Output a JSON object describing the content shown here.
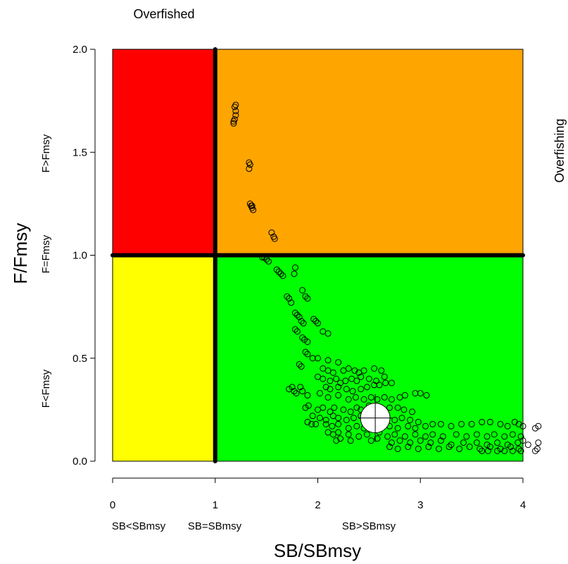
{
  "chart_data": {
    "type": "scatter",
    "title": "",
    "top_label": "Overfished",
    "right_label": "Overfishing",
    "xlabel": "SB/SBmsy",
    "ylabel": "F/Fmsy",
    "xlim": [
      0,
      4
    ],
    "ylim": [
      0,
      2
    ],
    "x_ticks": [
      "0",
      "1",
      "2",
      "3",
      "4"
    ],
    "y_ticks": [
      "0.0",
      "0.5",
      "1.0",
      "1.5",
      "2.0"
    ],
    "x_region_labels": [
      "SB<SBmsy",
      "SB=SBmsy",
      "SB>SBmsy"
    ],
    "y_region_labels": [
      "F<Fmsy",
      "F=Fmsy",
      "F>Fmsy"
    ],
    "zones": [
      {
        "name": "overfished-and-overfishing",
        "color": "#ff0000",
        "x": [
          0,
          1
        ],
        "y": [
          1,
          2
        ]
      },
      {
        "name": "overfishing-only",
        "color": "#ffa500",
        "x": [
          1,
          4
        ],
        "y": [
          1,
          2
        ]
      },
      {
        "name": "overfished-only",
        "color": "#ffff00",
        "x": [
          0,
          1
        ],
        "y": [
          0,
          1
        ]
      },
      {
        "name": "healthy",
        "color": "#00ff00",
        "x": [
          1,
          4
        ],
        "y": [
          0,
          1
        ]
      }
    ],
    "reference_lines": {
      "x": 1,
      "y": 1
    },
    "current_estimate": {
      "x": 2.56,
      "y": 0.21
    },
    "points": [
      [
        1.19,
        1.72
      ],
      [
        1.2,
        1.73
      ],
      [
        1.2,
        1.68
      ],
      [
        1.19,
        1.66
      ],
      [
        1.18,
        1.65
      ],
      [
        1.18,
        1.64
      ],
      [
        1.2,
        1.7
      ],
      [
        1.33,
        1.45
      ],
      [
        1.34,
        1.44
      ],
      [
        1.33,
        1.42
      ],
      [
        1.34,
        1.25
      ],
      [
        1.35,
        1.24
      ],
      [
        1.36,
        1.23
      ],
      [
        1.37,
        1.22
      ],
      [
        1.36,
        1.24
      ],
      [
        1.55,
        1.11
      ],
      [
        1.57,
        1.09
      ],
      [
        1.58,
        1.08
      ],
      [
        1.48,
        0.99
      ],
      [
        1.5,
        0.98
      ],
      [
        1.52,
        0.97
      ],
      [
        1.46,
        0.99
      ],
      [
        1.6,
        0.93
      ],
      [
        1.62,
        0.92
      ],
      [
        1.64,
        0.91
      ],
      [
        1.66,
        0.9
      ],
      [
        1.78,
        0.94
      ],
      [
        1.77,
        0.91
      ],
      [
        1.7,
        0.8
      ],
      [
        1.72,
        0.79
      ],
      [
        1.74,
        0.77
      ],
      [
        1.85,
        0.83
      ],
      [
        1.88,
        0.8
      ],
      [
        1.9,
        0.79
      ],
      [
        1.78,
        0.72
      ],
      [
        1.8,
        0.71
      ],
      [
        1.82,
        0.7
      ],
      [
        1.84,
        0.68
      ],
      [
        1.86,
        0.67
      ],
      [
        1.96,
        0.69
      ],
      [
        1.98,
        0.68
      ],
      [
        2.0,
        0.67
      ],
      [
        2.05,
        0.63
      ],
      [
        2.1,
        0.62
      ],
      [
        1.78,
        0.64
      ],
      [
        1.8,
        0.63
      ],
      [
        1.85,
        0.6
      ],
      [
        1.87,
        0.59
      ],
      [
        1.9,
        0.58
      ],
      [
        1.88,
        0.53
      ],
      [
        1.9,
        0.52
      ],
      [
        1.95,
        0.5
      ],
      [
        2.0,
        0.5
      ],
      [
        2.1,
        0.49
      ],
      [
        2.2,
        0.48
      ],
      [
        1.82,
        0.47
      ],
      [
        1.84,
        0.46
      ],
      [
        2.05,
        0.45
      ],
      [
        2.1,
        0.44
      ],
      [
        2.15,
        0.43
      ],
      [
        2.25,
        0.44
      ],
      [
        2.3,
        0.45
      ],
      [
        2.36,
        0.44
      ],
      [
        2.4,
        0.43
      ],
      [
        2.45,
        0.44
      ],
      [
        2.55,
        0.45
      ],
      [
        2.62,
        0.44
      ],
      [
        2.0,
        0.41
      ],
      [
        2.05,
        0.4
      ],
      [
        2.12,
        0.39
      ],
      [
        2.18,
        0.4
      ],
      [
        2.22,
        0.38
      ],
      [
        2.27,
        0.39
      ],
      [
        2.33,
        0.4
      ],
      [
        2.38,
        0.39
      ],
      [
        2.42,
        0.41
      ],
      [
        2.5,
        0.4
      ],
      [
        2.57,
        0.39
      ],
      [
        2.65,
        0.41
      ],
      [
        2.08,
        0.36
      ],
      [
        2.12,
        0.35
      ],
      [
        2.2,
        0.36
      ],
      [
        2.28,
        0.35
      ],
      [
        2.34,
        0.34
      ],
      [
        2.42,
        0.35
      ],
      [
        2.48,
        0.36
      ],
      [
        2.55,
        0.37
      ],
      [
        2.6,
        0.37
      ],
      [
        2.66,
        0.38
      ],
      [
        2.72,
        0.38
      ],
      [
        1.75,
        0.36
      ],
      [
        1.77,
        0.34
      ],
      [
        1.79,
        0.33
      ],
      [
        1.72,
        0.35
      ],
      [
        1.83,
        0.36
      ],
      [
        1.85,
        0.34
      ],
      [
        1.9,
        0.32
      ],
      [
        2.02,
        0.33
      ],
      [
        2.1,
        0.31
      ],
      [
        2.2,
        0.32
      ],
      [
        2.3,
        0.3
      ],
      [
        2.37,
        0.31
      ],
      [
        2.45,
        0.3
      ],
      [
        2.52,
        0.31
      ],
      [
        2.58,
        0.3
      ],
      [
        2.65,
        0.31
      ],
      [
        2.72,
        0.3
      ],
      [
        2.8,
        0.31
      ],
      [
        2.85,
        0.32
      ],
      [
        2.95,
        0.33
      ],
      [
        3.0,
        0.33
      ],
      [
        3.06,
        0.32
      ],
      [
        1.88,
        0.26
      ],
      [
        1.91,
        0.27
      ],
      [
        2.0,
        0.25
      ],
      [
        2.05,
        0.26
      ],
      [
        2.12,
        0.24
      ],
      [
        2.16,
        0.26
      ],
      [
        2.25,
        0.25
      ],
      [
        2.32,
        0.24
      ],
      [
        2.38,
        0.26
      ],
      [
        2.42,
        0.25
      ],
      [
        2.5,
        0.27
      ],
      [
        2.7,
        0.26
      ],
      [
        2.78,
        0.26
      ],
      [
        2.84,
        0.25
      ],
      [
        2.92,
        0.24
      ],
      [
        1.95,
        0.22
      ],
      [
        2.02,
        0.21
      ],
      [
        2.08,
        0.2
      ],
      [
        2.15,
        0.22
      ],
      [
        2.2,
        0.21
      ],
      [
        2.28,
        0.2
      ],
      [
        2.35,
        0.21
      ],
      [
        2.42,
        0.22
      ],
      [
        2.75,
        0.2
      ],
      [
        2.82,
        0.21
      ],
      [
        2.9,
        0.2
      ],
      [
        2.98,
        0.19
      ],
      [
        1.9,
        0.19
      ],
      [
        1.94,
        0.18
      ],
      [
        1.98,
        0.18
      ],
      [
        2.08,
        0.18
      ],
      [
        2.14,
        0.17
      ],
      [
        2.2,
        0.18
      ],
      [
        2.3,
        0.16
      ],
      [
        2.38,
        0.17
      ],
      [
        2.45,
        0.16
      ],
      [
        2.7,
        0.17
      ],
      [
        2.78,
        0.16
      ],
      [
        2.88,
        0.17
      ],
      [
        2.95,
        0.16
      ],
      [
        3.05,
        0.17
      ],
      [
        3.12,
        0.18
      ],
      [
        3.2,
        0.18
      ],
      [
        3.3,
        0.17
      ],
      [
        3.4,
        0.18
      ],
      [
        3.5,
        0.18
      ],
      [
        3.6,
        0.19
      ],
      [
        3.68,
        0.19
      ],
      [
        3.78,
        0.18
      ],
      [
        3.85,
        0.17
      ],
      [
        3.92,
        0.19
      ],
      [
        3.96,
        0.18
      ],
      [
        4.0,
        0.17
      ],
      [
        4.15,
        0.17
      ],
      [
        4.12,
        0.16
      ],
      [
        2.1,
        0.14
      ],
      [
        2.15,
        0.13
      ],
      [
        2.2,
        0.14
      ],
      [
        2.3,
        0.13
      ],
      [
        2.4,
        0.12
      ],
      [
        2.48,
        0.13
      ],
      [
        2.6,
        0.14
      ],
      [
        2.68,
        0.12
      ],
      [
        2.75,
        0.13
      ],
      [
        2.85,
        0.12
      ],
      [
        2.95,
        0.13
      ],
      [
        3.05,
        0.12
      ],
      [
        3.12,
        0.13
      ],
      [
        3.22,
        0.12
      ],
      [
        3.35,
        0.13
      ],
      [
        3.45,
        0.12
      ],
      [
        3.55,
        0.13
      ],
      [
        3.65,
        0.12
      ],
      [
        3.72,
        0.13
      ],
      [
        3.82,
        0.12
      ],
      [
        3.9,
        0.13
      ],
      [
        3.98,
        0.12
      ],
      [
        4.0,
        0.1
      ],
      [
        2.18,
        0.1
      ],
      [
        2.22,
        0.11
      ],
      [
        2.32,
        0.1
      ],
      [
        2.52,
        0.1
      ],
      [
        2.58,
        0.11
      ],
      [
        2.72,
        0.09
      ],
      [
        2.8,
        0.1
      ],
      [
        2.9,
        0.09
      ],
      [
        3.0,
        0.1
      ],
      [
        3.1,
        0.09
      ],
      [
        3.2,
        0.1
      ],
      [
        3.3,
        0.08
      ],
      [
        3.42,
        0.09
      ],
      [
        3.55,
        0.09
      ],
      [
        3.65,
        0.08
      ],
      [
        3.75,
        0.09
      ],
      [
        3.85,
        0.08
      ],
      [
        3.95,
        0.09
      ],
      [
        4.05,
        0.08
      ],
      [
        4.15,
        0.09
      ],
      [
        2.7,
        0.07
      ],
      [
        2.78,
        0.06
      ],
      [
        2.88,
        0.07
      ],
      [
        2.98,
        0.06
      ],
      [
        3.08,
        0.07
      ],
      [
        3.18,
        0.06
      ],
      [
        3.28,
        0.07
      ],
      [
        3.38,
        0.06
      ],
      [
        3.48,
        0.07
      ],
      [
        3.58,
        0.06
      ],
      [
        3.68,
        0.07
      ],
      [
        3.78,
        0.06
      ],
      [
        3.88,
        0.07
      ],
      [
        3.96,
        0.06
      ],
      [
        4.14,
        0.06
      ],
      [
        4.12,
        0.05
      ],
      [
        3.6,
        0.05
      ],
      [
        3.66,
        0.05
      ],
      [
        3.75,
        0.05
      ],
      [
        3.82,
        0.05
      ],
      [
        3.9,
        0.05
      ],
      [
        3.98,
        0.05
      ]
    ]
  }
}
